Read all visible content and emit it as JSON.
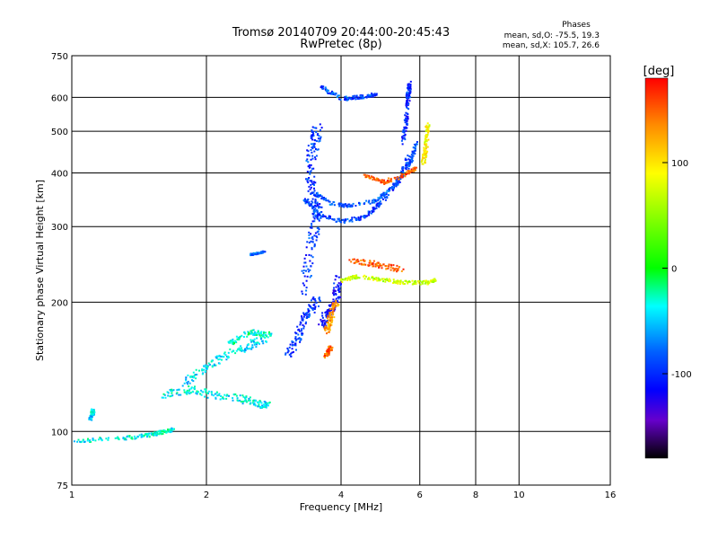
{
  "chart_data": {
    "type": "scatter",
    "title": "Tromsø 20140709 20:44:00-20:45:43",
    "subtitle": "RwPretec (8p)",
    "xlabel": "Frequency [MHz]",
    "ylabel": "Stationary phase Virtual Height [km]",
    "xscale": "log",
    "yscale": "log",
    "xlim": [
      1,
      16
    ],
    "ylim": [
      75,
      750
    ],
    "x_ticks": [
      1,
      2,
      4,
      6,
      8,
      10,
      16
    ],
    "y_ticks": [
      75,
      100,
      200,
      300,
      400,
      500,
      600,
      750
    ],
    "grid_x": [
      2,
      4,
      6,
      8,
      10
    ],
    "grid_y": [
      100,
      200,
      300,
      400,
      500,
      600
    ],
    "grid": true,
    "info_box": {
      "heading": "Phases",
      "line1": "mean, sd,O: -75.5, 19.3",
      "line2": "mean, sd,X: 105.7, 26.6"
    },
    "colorbar": {
      "label": "[deg]",
      "range": [
        -180,
        180
      ],
      "ticks": [
        100,
        0,
        -100
      ],
      "colors": [
        "#ff0000",
        "#ff8800",
        "#ffff00",
        "#00ff00",
        "#00ffff",
        "#0060ff",
        "#0000ff",
        "#6600cc",
        "#000000"
      ]
    },
    "series": [
      {
        "name": "curve",
        "line": [
          [
            1.02,
            95
          ],
          [
            1.2,
            96
          ],
          [
            1.4,
            97
          ],
          [
            1.55,
            99
          ],
          [
            1.7,
            101
          ]
        ],
        "phase": -35,
        "jitter": 0.02
      },
      {
        "name": "curve",
        "line": [
          [
            1.1,
            107
          ],
          [
            1.12,
            112
          ]
        ],
        "phase": -45,
        "jitter": 0.02
      },
      {
        "name": "curve",
        "line": [
          [
            1.6,
            122
          ],
          [
            1.85,
            125
          ],
          [
            2.05,
            122
          ],
          [
            2.35,
            120
          ],
          [
            2.6,
            116
          ],
          [
            2.75,
            115
          ]
        ],
        "phase": -40,
        "jitter": 0.04
      },
      {
        "name": "curve",
        "line": [
          [
            1.75,
            127
          ],
          [
            1.95,
            138
          ],
          [
            2.2,
            150
          ],
          [
            2.45,
            157
          ],
          [
            2.7,
            165
          ]
        ],
        "phase": -45,
        "jitter": 0.04
      },
      {
        "name": "curve",
        "line": [
          [
            2.25,
            160
          ],
          [
            2.5,
            170
          ],
          [
            2.8,
            168
          ]
        ],
        "phase": -30,
        "jitter": 0.03
      },
      {
        "name": "curve",
        "line": [
          [
            2.5,
            258
          ],
          [
            2.7,
            262
          ]
        ],
        "phase": -75,
        "jitter": 0.01
      },
      {
        "name": "curve",
        "line": [
          [
            3.05,
            150
          ],
          [
            3.2,
            165
          ],
          [
            3.35,
            185
          ],
          [
            3.55,
            205
          ]
        ],
        "phase": -95,
        "jitter": 0.04
      },
      {
        "name": "curve",
        "line": [
          [
            3.3,
            210
          ],
          [
            3.4,
            260
          ],
          [
            3.5,
            300
          ],
          [
            3.55,
            330
          ],
          [
            3.45,
            360
          ],
          [
            3.4,
            420
          ],
          [
            3.5,
            470
          ],
          [
            3.55,
            515
          ]
        ],
        "phase": -95,
        "jitter": 0.05
      },
      {
        "name": "curve",
        "line": [
          [
            3.3,
            348
          ],
          [
            3.6,
            320
          ],
          [
            4.0,
            308
          ],
          [
            4.5,
            315
          ],
          [
            5.0,
            345
          ],
          [
            5.4,
            390
          ],
          [
            5.7,
            440
          ]
        ],
        "phase": -95,
        "jitter": 0.02
      },
      {
        "name": "curve",
        "line": [
          [
            3.45,
            360
          ],
          [
            3.8,
            340
          ],
          [
            4.2,
            335
          ],
          [
            4.8,
            345
          ],
          [
            5.3,
            375
          ],
          [
            5.7,
            420
          ],
          [
            5.9,
            470
          ]
        ],
        "phase": -85,
        "jitter": 0.02
      },
      {
        "name": "curve",
        "line": [
          [
            5.5,
            470
          ],
          [
            5.6,
            530
          ],
          [
            5.65,
            600
          ],
          [
            5.7,
            650
          ]
        ],
        "phase": -100,
        "jitter": 0.02
      },
      {
        "name": "curve",
        "line": [
          [
            3.6,
            175
          ],
          [
            3.75,
            190
          ],
          [
            3.9,
            205
          ],
          [
            3.95,
            230
          ]
        ],
        "phase": -110,
        "jitter": 0.04
      },
      {
        "name": "curve",
        "line": [
          [
            3.7,
            150
          ],
          [
            3.75,
            154
          ],
          [
            3.8,
            157
          ]
        ],
        "phase": 150,
        "jitter": 0.02
      },
      {
        "name": "curve",
        "line": [
          [
            3.7,
            170
          ],
          [
            3.8,
            185
          ],
          [
            3.9,
            200
          ]
        ],
        "phase": 130,
        "jitter": 0.03
      },
      {
        "name": "curve",
        "line": [
          [
            4.0,
            225
          ],
          [
            4.4,
            230
          ],
          [
            5.0,
            225
          ],
          [
            5.5,
            222
          ],
          [
            6.2,
            222
          ],
          [
            6.5,
            225
          ]
        ],
        "phase": 70,
        "jitter": 0.02
      },
      {
        "name": "curve",
        "line": [
          [
            4.2,
            250
          ],
          [
            4.8,
            245
          ],
          [
            5.5,
            238
          ]
        ],
        "phase": 150,
        "jitter": 0.03
      },
      {
        "name": "curve",
        "line": [
          [
            4.5,
            395
          ],
          [
            5.0,
            380
          ],
          [
            5.5,
            395
          ],
          [
            5.9,
            410
          ]
        ],
        "phase": 150,
        "jitter": 0.02
      },
      {
        "name": "curve",
        "line": [
          [
            6.1,
            420
          ],
          [
            6.2,
            460
          ],
          [
            6.25,
            520
          ]
        ],
        "phase": 90,
        "jitter": 0.02
      },
      {
        "name": "curve",
        "line": [
          [
            3.6,
            635
          ],
          [
            4.0,
            595
          ],
          [
            4.4,
            600
          ],
          [
            4.8,
            610
          ]
        ],
        "phase": -90,
        "jitter": 0.02
      }
    ]
  }
}
